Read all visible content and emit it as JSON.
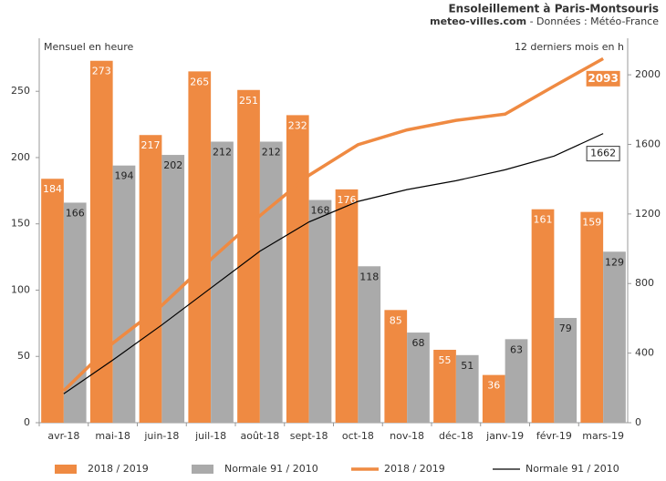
{
  "chart_data": {
    "type": "bar",
    "title": "Ensoleillement à Paris-Montsouris",
    "subtitle_site": "meteo-villes.com",
    "subtitle_source": "- Données : Météo-France",
    "ylabel": "Mensuel en heure",
    "y2label": "12 derniers mois en h",
    "categories": [
      "avr-18",
      "mai-18",
      "juin-18",
      "juil-18",
      "août-18",
      "sept-18",
      "oct-18",
      "nov-18",
      "déc-18",
      "janv-19",
      "févr-19",
      "mars-19"
    ],
    "ylim": [
      0,
      290
    ],
    "yticks": [
      0,
      50,
      100,
      150,
      200,
      250
    ],
    "y2lim": [
      0,
      2210
    ],
    "y2ticks": [
      0,
      400,
      800,
      1200,
      1600,
      2000
    ],
    "series": [
      {
        "name": "2018 / 2019",
        "type": "bar",
        "color": "#ef8a42",
        "values": [
          184,
          273,
          217,
          265,
          251,
          232,
          176,
          85,
          55,
          36,
          161,
          159
        ]
      },
      {
        "name": "Normale 91 / 2010",
        "type": "bar",
        "color": "#aaaaaa",
        "values": [
          166,
          194,
          202,
          212,
          212,
          168,
          118,
          68,
          51,
          63,
          79,
          129
        ]
      },
      {
        "name": "2018 / 2019",
        "type": "line",
        "axis": "y2",
        "color": "#ef8a42",
        "values": [
          184,
          457,
          674,
          939,
          1190,
          1422,
          1598,
          1683,
          1738,
          1774,
          1935,
          2093
        ]
      },
      {
        "name": "Normale 91 / 2010",
        "type": "line",
        "axis": "y2",
        "color": "#000000",
        "values": [
          166,
          360,
          562,
          774,
          986,
          1154,
          1272,
          1340,
          1391,
          1454,
          1533,
          1662
        ]
      }
    ]
  }
}
